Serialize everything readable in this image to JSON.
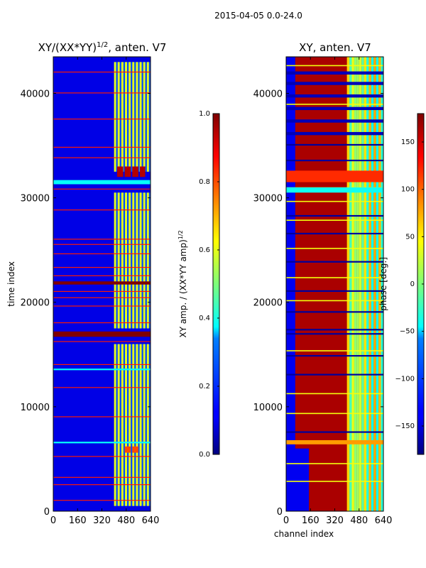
{
  "suptitle": "2015-04-05 0.0-24.0",
  "chart_data": [
    {
      "type": "heatmap",
      "title": "XY/(XX*YY)",
      "title_exponent": "1/2",
      "title_suffix": ", anten. V7",
      "xlabel": "",
      "ylabel": "time index",
      "xlim": [
        0,
        640
      ],
      "ylim": [
        0,
        43500
      ],
      "xticks": [
        0,
        160,
        320,
        480,
        640
      ],
      "yticks": [
        0,
        10000,
        20000,
        30000,
        40000
      ],
      "colormap": "jet",
      "colorbar": {
        "label": "XY amp. / (XX*YY amp)",
        "label_exponent": "1/2",
        "range": [
          0.0,
          1.0
        ],
        "ticks": [
          "0.0",
          "0.2",
          "0.4",
          "0.6",
          "0.8",
          "1.0"
        ],
        "tick_values": [
          0.0,
          0.2,
          0.4,
          0.6,
          0.8,
          1.0
        ]
      },
      "background_value": 0.1,
      "bright_channel_range": [
        400,
        620
      ],
      "bright_value": 0.6,
      "bright_segments": [
        [
          500,
          16000
        ],
        [
          17500,
          30500
        ],
        [
          32500,
          43000
        ]
      ],
      "hot_patches": [
        {
          "x": [
            420,
            460
          ],
          "y": [
            32000,
            33000
          ],
          "value": 0.95
        },
        {
          "x": [
            470,
            510
          ],
          "y": [
            32000,
            33000
          ],
          "value": 0.95
        },
        {
          "x": [
            520,
            560
          ],
          "y": [
            32000,
            33000
          ],
          "value": 0.95
        },
        {
          "x": [
            570,
            605
          ],
          "y": [
            32000,
            33000
          ],
          "value": 0.95
        },
        {
          "x": [
            470,
            510
          ],
          "y": [
            5600,
            6200
          ],
          "value": 0.8
        },
        {
          "x": [
            520,
            560
          ],
          "y": [
            5600,
            6200
          ],
          "value": 0.8
        }
      ],
      "flagged_rows": [
        1000,
        2500,
        3200,
        5200,
        9000,
        11800,
        14000,
        16200,
        18000,
        19600,
        20400,
        21000,
        22500,
        23300,
        24600,
        25500,
        26000,
        28800,
        30800,
        33800,
        34800,
        37500,
        40000,
        42000
      ],
      "saturated_bands": [
        [
          16700,
          17200
        ],
        [
          21700,
          22000
        ]
      ],
      "cyan_bands": [
        [
          6500,
          6650
        ],
        [
          31300,
          31700
        ],
        [
          13500,
          13650
        ]
      ]
    },
    {
      "type": "heatmap",
      "title": "XY, anten. V7",
      "xlabel": "channel index",
      "ylabel": "",
      "xlim": [
        0,
        640
      ],
      "ylim": [
        0,
        43500
      ],
      "xticks": [
        0,
        160,
        320,
        480,
        640
      ],
      "yticks": [
        0,
        10000,
        20000,
        30000,
        40000
      ],
      "colormap": "jet",
      "colorbar": {
        "label": "phase [deg.]",
        "range": [
          -180,
          180
        ],
        "ticks": [
          "−150",
          "−100",
          "−50",
          "0",
          "50",
          "100",
          "150"
        ],
        "tick_values": [
          -150,
          -100,
          -50,
          0,
          50,
          100,
          150
        ]
      },
      "background_value": 165,
      "left_edge_value": -140,
      "left_edge_channels": [
        0,
        60
      ],
      "band_value": 15,
      "band_channels": [
        400,
        640
      ],
      "lower_left_blue_region": {
        "x": [
          0,
          150
        ],
        "y": [
          0,
          6000
        ],
        "value": -140
      },
      "upper_blue_stripes": [
        36000,
        37200,
        38400,
        39600,
        40800,
        41800
      ],
      "blue_rows": [
        7500,
        13000,
        14800,
        16900,
        17300,
        19000,
        21000,
        23800,
        26500,
        28200,
        33500,
        35000
      ],
      "yellow_rows": [
        2800,
        4500,
        9300,
        11200,
        15300,
        20100,
        22300,
        25100,
        27800,
        29600,
        30900,
        38900,
        42600
      ],
      "wide_bands": [
        {
          "y": [
            6400,
            6800
          ],
          "value": 80
        },
        {
          "y": [
            31500,
            32600
          ],
          "value": 120
        },
        {
          "y": [
            30500,
            31000
          ],
          "value": -40
        }
      ]
    }
  ]
}
